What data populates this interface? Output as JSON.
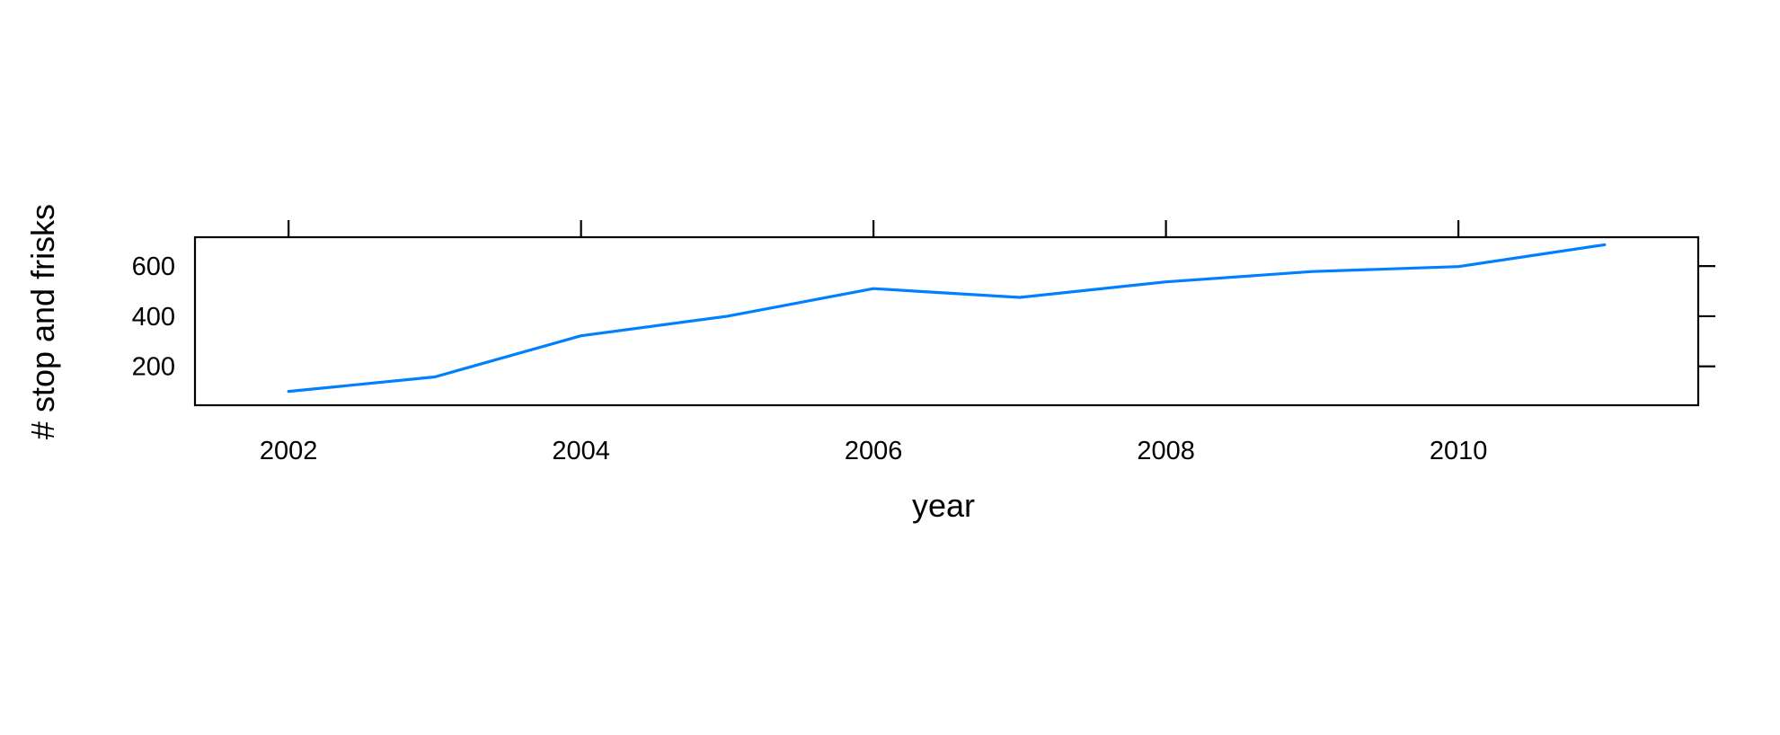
{
  "chart_data": {
    "type": "line",
    "title": "",
    "xlabel": "year",
    "ylabel": "# stop and frisks",
    "xlim": [
      2001.36,
      2011.64
    ],
    "ylim": [
      45,
      715
    ],
    "x_ticks": [
      2002,
      2004,
      2006,
      2008,
      2010
    ],
    "y_ticks": [
      200,
      400,
      600
    ],
    "grid": false,
    "line_color": "#0080ff",
    "series": [
      {
        "x": [
          2002,
          2003,
          2004,
          2005,
          2006,
          2007,
          2008,
          2009,
          2010,
          2011
        ],
        "values": [
          100,
          158,
          322,
          400,
          510,
          475,
          537,
          578,
          598,
          685
        ]
      }
    ]
  }
}
